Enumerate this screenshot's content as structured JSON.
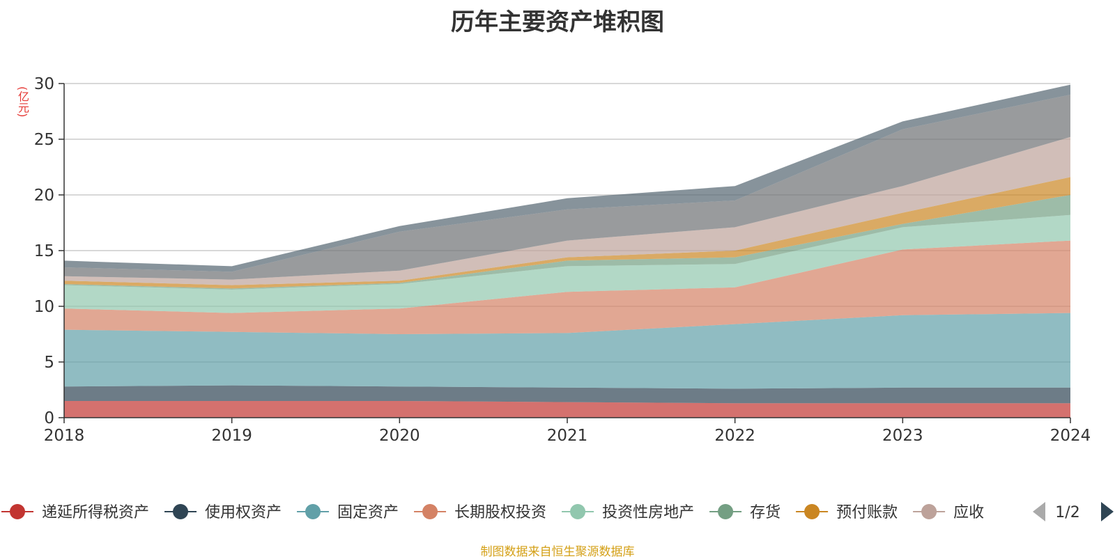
{
  "chart_data": {
    "type": "area",
    "stacked": true,
    "title": "历年主要资产堆积图",
    "unit_label": "(亿元)",
    "x": [
      "2018",
      "2019",
      "2020",
      "2021",
      "2022",
      "2023",
      "2024"
    ],
    "ylim": [
      0,
      30
    ],
    "y_ticks": [
      "0",
      "5",
      "10",
      "15",
      "20",
      "25",
      "30"
    ],
    "grid": true,
    "legend_position": "bottom",
    "series": [
      {
        "name": "递延所得税资产",
        "color": "#c23531",
        "values": [
          1.5,
          1.5,
          1.5,
          1.4,
          1.3,
          1.3,
          1.3
        ]
      },
      {
        "name": "使用权资产",
        "color": "#2f4554",
        "values": [
          1.3,
          1.4,
          1.3,
          1.3,
          1.3,
          1.4,
          1.4
        ]
      },
      {
        "name": "固定资产",
        "color": "#61a0a8",
        "values": [
          5.1,
          4.8,
          4.7,
          4.9,
          5.8,
          6.5,
          6.7
        ]
      },
      {
        "name": "长期股权投资",
        "color": "#d48265",
        "values": [
          1.9,
          1.7,
          2.3,
          3.7,
          3.3,
          5.9,
          6.5
        ]
      },
      {
        "name": "投资性房地产",
        "color": "#91c7ae",
        "values": [
          2.1,
          2.1,
          2.2,
          2.3,
          2.1,
          2.0,
          2.3
        ]
      },
      {
        "name": "存货",
        "color": "#749f83",
        "values": [
          0.1,
          0.1,
          0.1,
          0.5,
          0.6,
          0.3,
          1.8
        ]
      },
      {
        "name": "预付账款",
        "color": "#ca8622",
        "values": [
          0.3,
          0.3,
          0.2,
          0.3,
          0.6,
          1.0,
          1.6
        ]
      },
      {
        "name": "应收账款",
        "color": "#bda29a",
        "values": [
          0.4,
          0.5,
          0.9,
          1.5,
          2.1,
          2.4,
          3.6
        ]
      },
      {
        "name": "",
        "color": "#6e7074",
        "values": [
          0.8,
          0.7,
          3.5,
          2.8,
          2.4,
          5.1,
          3.8
        ]
      },
      {
        "name": "",
        "color": "#546570",
        "values": [
          0.6,
          0.5,
          0.5,
          1.0,
          1.3,
          0.7,
          0.9
        ]
      }
    ]
  },
  "legend": {
    "visible_items": [
      "递延所得税资产",
      "使用权资产",
      "固定资产",
      "长期股权投资",
      "投资性房地产",
      "存货",
      "预付账款",
      "应收"
    ],
    "page_indicator": "1/2",
    "prev_icon": "triangle-left-icon",
    "next_icon": "triangle-right-icon"
  },
  "source_note": "制图数据来自恒生聚源数据库"
}
